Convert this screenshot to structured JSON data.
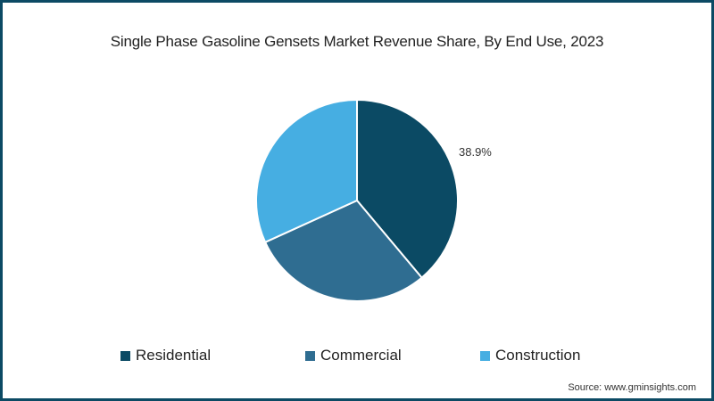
{
  "title": "Single Phase Gasoline Gensets Market Revenue Share, By End Use, 2023",
  "source": "Source: www.gminsights.com",
  "label_residential": "38.9%",
  "legend": [
    {
      "label": "Residential",
      "color": "#0b4a64"
    },
    {
      "label": "Commercial",
      "color": "#2f6d91"
    },
    {
      "label": "Construction",
      "color": "#46aee2"
    }
  ],
  "colors": {
    "border": "#0c4a64",
    "background": "#ffffff"
  },
  "chart_data": {
    "type": "pie",
    "title": "Single Phase Gasoline Gensets Market Revenue Share, By End Use, 2023",
    "categories": [
      "Residential",
      "Commercial",
      "Construction"
    ],
    "values": [
      38.9,
      29.3,
      31.8
    ],
    "labels_shown": {
      "Residential": "38.9%"
    },
    "legend_position": "bottom",
    "start_angle": "top (12 o'clock), clockwise"
  }
}
